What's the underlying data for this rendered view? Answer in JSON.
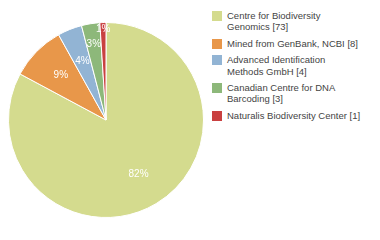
{
  "chart_data": {
    "type": "pie",
    "categories": [
      "Centre for Biodiversity\nGenomics [73]",
      "Mined from GenBank, NCBI [8]",
      "Advanced Identification\nMethods GmbH [4]",
      "Canadian Centre for DNA\nBarcoding [3]",
      "Naturalis Biodiversity Center [1]"
    ],
    "values": [
      82,
      9,
      4,
      3,
      1
    ],
    "value_labels": [
      "82%",
      "9%",
      "4%",
      "3%",
      "1%"
    ],
    "colors": [
      "#d4db8e",
      "#e8974a",
      "#92b4d4",
      "#8db87a",
      "#c94040"
    ],
    "data_labels": true,
    "legend": "right"
  }
}
